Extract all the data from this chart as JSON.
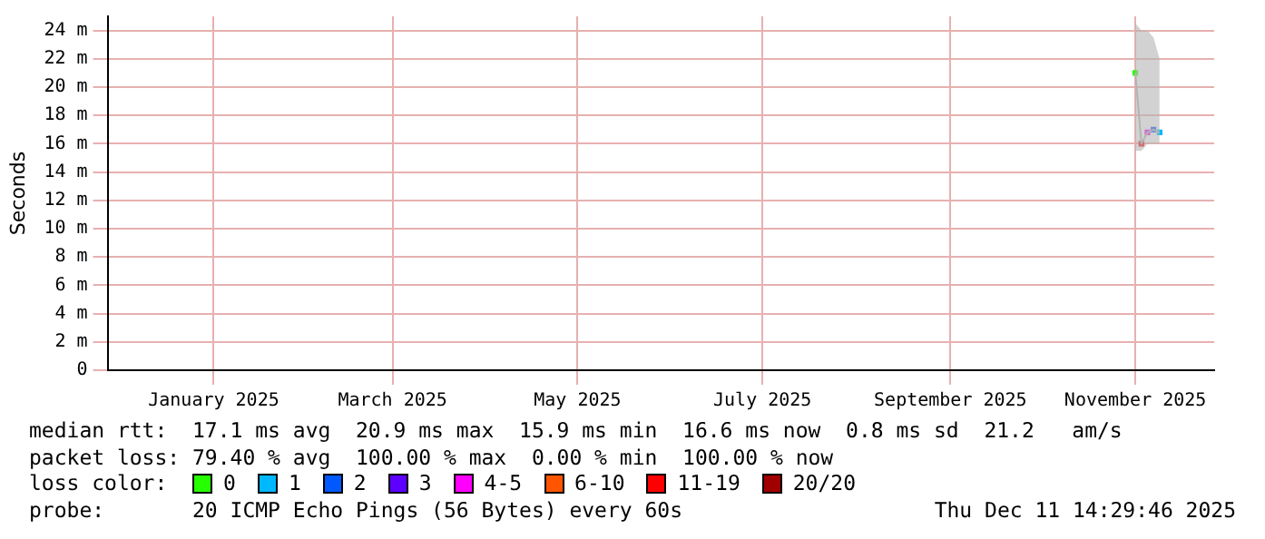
{
  "chart_data": {
    "type": "scatter",
    "ylabel": "Seconds",
    "legend": "bottom",
    "legend_title": "loss color:",
    "grid": true,
    "marker": "square",
    "x": [
      "2025-11-15",
      "2025-11-17",
      "2025-11-19",
      "2025-11-21",
      "2025-11-23"
    ],
    "xlim": [
      "2024-12-11",
      "2025-12-11"
    ],
    "xticks": [
      {
        "value": "2025-01-15",
        "label": "January 2025"
      },
      {
        "value": "2025-03-15",
        "label": "March 2025"
      },
      {
        "value": "2025-05-15",
        "label": "May 2025"
      },
      {
        "value": "2025-07-15",
        "label": "July 2025"
      },
      {
        "value": "2025-09-15",
        "label": "September 2025"
      },
      {
        "value": "2025-11-15",
        "label": "November 2025"
      }
    ],
    "ylim": [
      0,
      25
    ],
    "yticks": [
      0,
      {
        "value": 2,
        "label": "2 m"
      },
      {
        "value": 4,
        "label": "4 m"
      },
      {
        "value": 6,
        "label": "6 m"
      },
      {
        "value": 8,
        "label": "8 m"
      },
      {
        "value": 10,
        "label": "10 m"
      },
      {
        "value": 12,
        "label": "12 m"
      },
      {
        "value": 14,
        "label": "14 m"
      },
      {
        "value": 16,
        "label": "16 m"
      },
      {
        "value": 18,
        "label": "18 m"
      },
      {
        "value": 20,
        "label": "20 m"
      },
      {
        "value": 22,
        "label": "22 m"
      },
      {
        "value": 24,
        "label": "24 m"
      }
    ],
    "series": [
      {
        "type": "line",
        "marker": "none",
        "color": "#b4b4b4",
        "values": [
          21,
          16,
          16.8,
          17,
          16.8
        ],
        "lower": [
          15.5,
          15.5,
          16,
          16,
          16
        ],
        "upper": [
          24.5,
          24,
          24,
          23.5,
          22
        ]
      },
      {
        "name": "0",
        "color": "#26ff00",
        "values": [
          21,
          null,
          null,
          null,
          null
        ]
      },
      {
        "name": "1",
        "color": "#00b8ff",
        "values": [
          null,
          null,
          null,
          null,
          16.8
        ]
      },
      {
        "name": "2",
        "color": "#0059ff",
        "values": [
          null,
          null,
          null,
          17,
          null
        ]
      },
      {
        "name": "3",
        "color": "#5e00ff",
        "values": [
          null,
          null,
          null,
          null,
          null
        ]
      },
      {
        "name": "4-5",
        "color": "#ff00ff",
        "values": [
          null,
          null,
          16.8,
          null,
          null
        ]
      },
      {
        "name": "6-10",
        "color": "#ff5500",
        "values": [
          null,
          null,
          null,
          null,
          null
        ]
      },
      {
        "name": "11-19",
        "color": "#ff0000",
        "values": [
          null,
          16,
          null,
          null,
          null
        ]
      },
      {
        "name": "20/20",
        "color": "#a10000",
        "values": [
          null,
          null,
          null,
          null,
          null
        ]
      }
    ],
    "annotations": [
      "median rtt:  17.1 ms avg  20.9 ms max  15.9 ms min  16.6 ms now  0.8 ms sd  21.2   am/s",
      "packet loss: 79.40 % avg  100.00 % max  0.00 % min  100.00 % now",
      "probe:       20 ICMP Echo Pings (56 Bytes) every 60s",
      "Thu Dec 11 14:29:46 2025"
    ]
  }
}
